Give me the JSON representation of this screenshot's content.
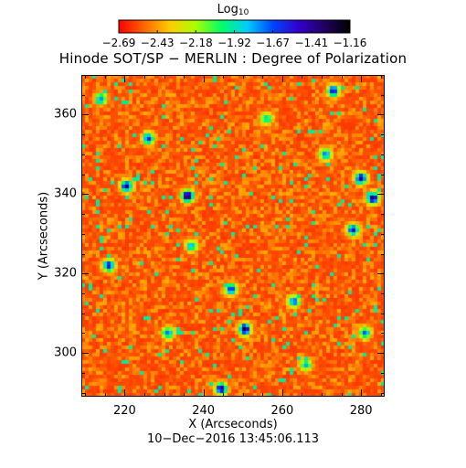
{
  "colorbar": {
    "title": "Log",
    "title_subscript": "10",
    "ticks": [
      "−2.69",
      "−2.43",
      "−2.18",
      "−1.92",
      "−1.67",
      "−1.41",
      "−1.16"
    ],
    "range": [
      -2.69,
      -1.16
    ],
    "colormap": [
      "#ff0000",
      "#ff6600",
      "#ffcc00",
      "#aaff00",
      "#00ff66",
      "#00ccff",
      "#0044ff",
      "#3300cc",
      "#200060",
      "#000000"
    ]
  },
  "main_title": "Hinode SOT/SP − MERLIN : Degree of Polarization",
  "xlabel": "X (Arcseconds)",
  "ylabel": "Y (Arcseconds)",
  "timestamp": "10−Dec−2016 13:45:06.113",
  "chart_data": {
    "type": "heatmap",
    "title": "Hinode SOT/SP − MERLIN : Degree of Polarization",
    "xlabel": "X (Arcseconds)",
    "ylabel": "Y (Arcseconds)",
    "xlim": [
      209,
      286
    ],
    "ylim": [
      289,
      370
    ],
    "xticks": [
      220,
      240,
      260,
      280
    ],
    "yticks": [
      300,
      320,
      340,
      360
    ],
    "value_scale": "log10",
    "value_range": [
      -2.69,
      -1.16
    ],
    "background_level": -2.55,
    "patches": [
      {
        "x": 236,
        "y": 339.5,
        "value": -1.2
      },
      {
        "x": 250.5,
        "y": 306,
        "value": -1.25
      },
      {
        "x": 283,
        "y": 339,
        "value": -1.3
      },
      {
        "x": 280,
        "y": 344,
        "value": -1.4
      },
      {
        "x": 278,
        "y": 331,
        "value": -1.5
      },
      {
        "x": 220.5,
        "y": 342,
        "value": -1.4
      },
      {
        "x": 244.5,
        "y": 291,
        "value": -1.35
      },
      {
        "x": 216,
        "y": 322,
        "value": -1.5
      },
      {
        "x": 273,
        "y": 366,
        "value": -1.5
      },
      {
        "x": 226,
        "y": 354,
        "value": -1.55
      },
      {
        "x": 247,
        "y": 316,
        "value": -1.6
      },
      {
        "x": 231,
        "y": 305,
        "value": -1.7
      },
      {
        "x": 263,
        "y": 313,
        "value": -1.65
      },
      {
        "x": 271,
        "y": 350,
        "value": -1.7
      },
      {
        "x": 214,
        "y": 364,
        "value": -1.75
      },
      {
        "x": 266,
        "y": 297,
        "value": -1.8
      },
      {
        "x": 256,
        "y": 359,
        "value": -1.85
      },
      {
        "x": 237,
        "y": 327,
        "value": -1.8
      },
      {
        "x": 281,
        "y": 305,
        "value": -1.7
      }
    ]
  }
}
